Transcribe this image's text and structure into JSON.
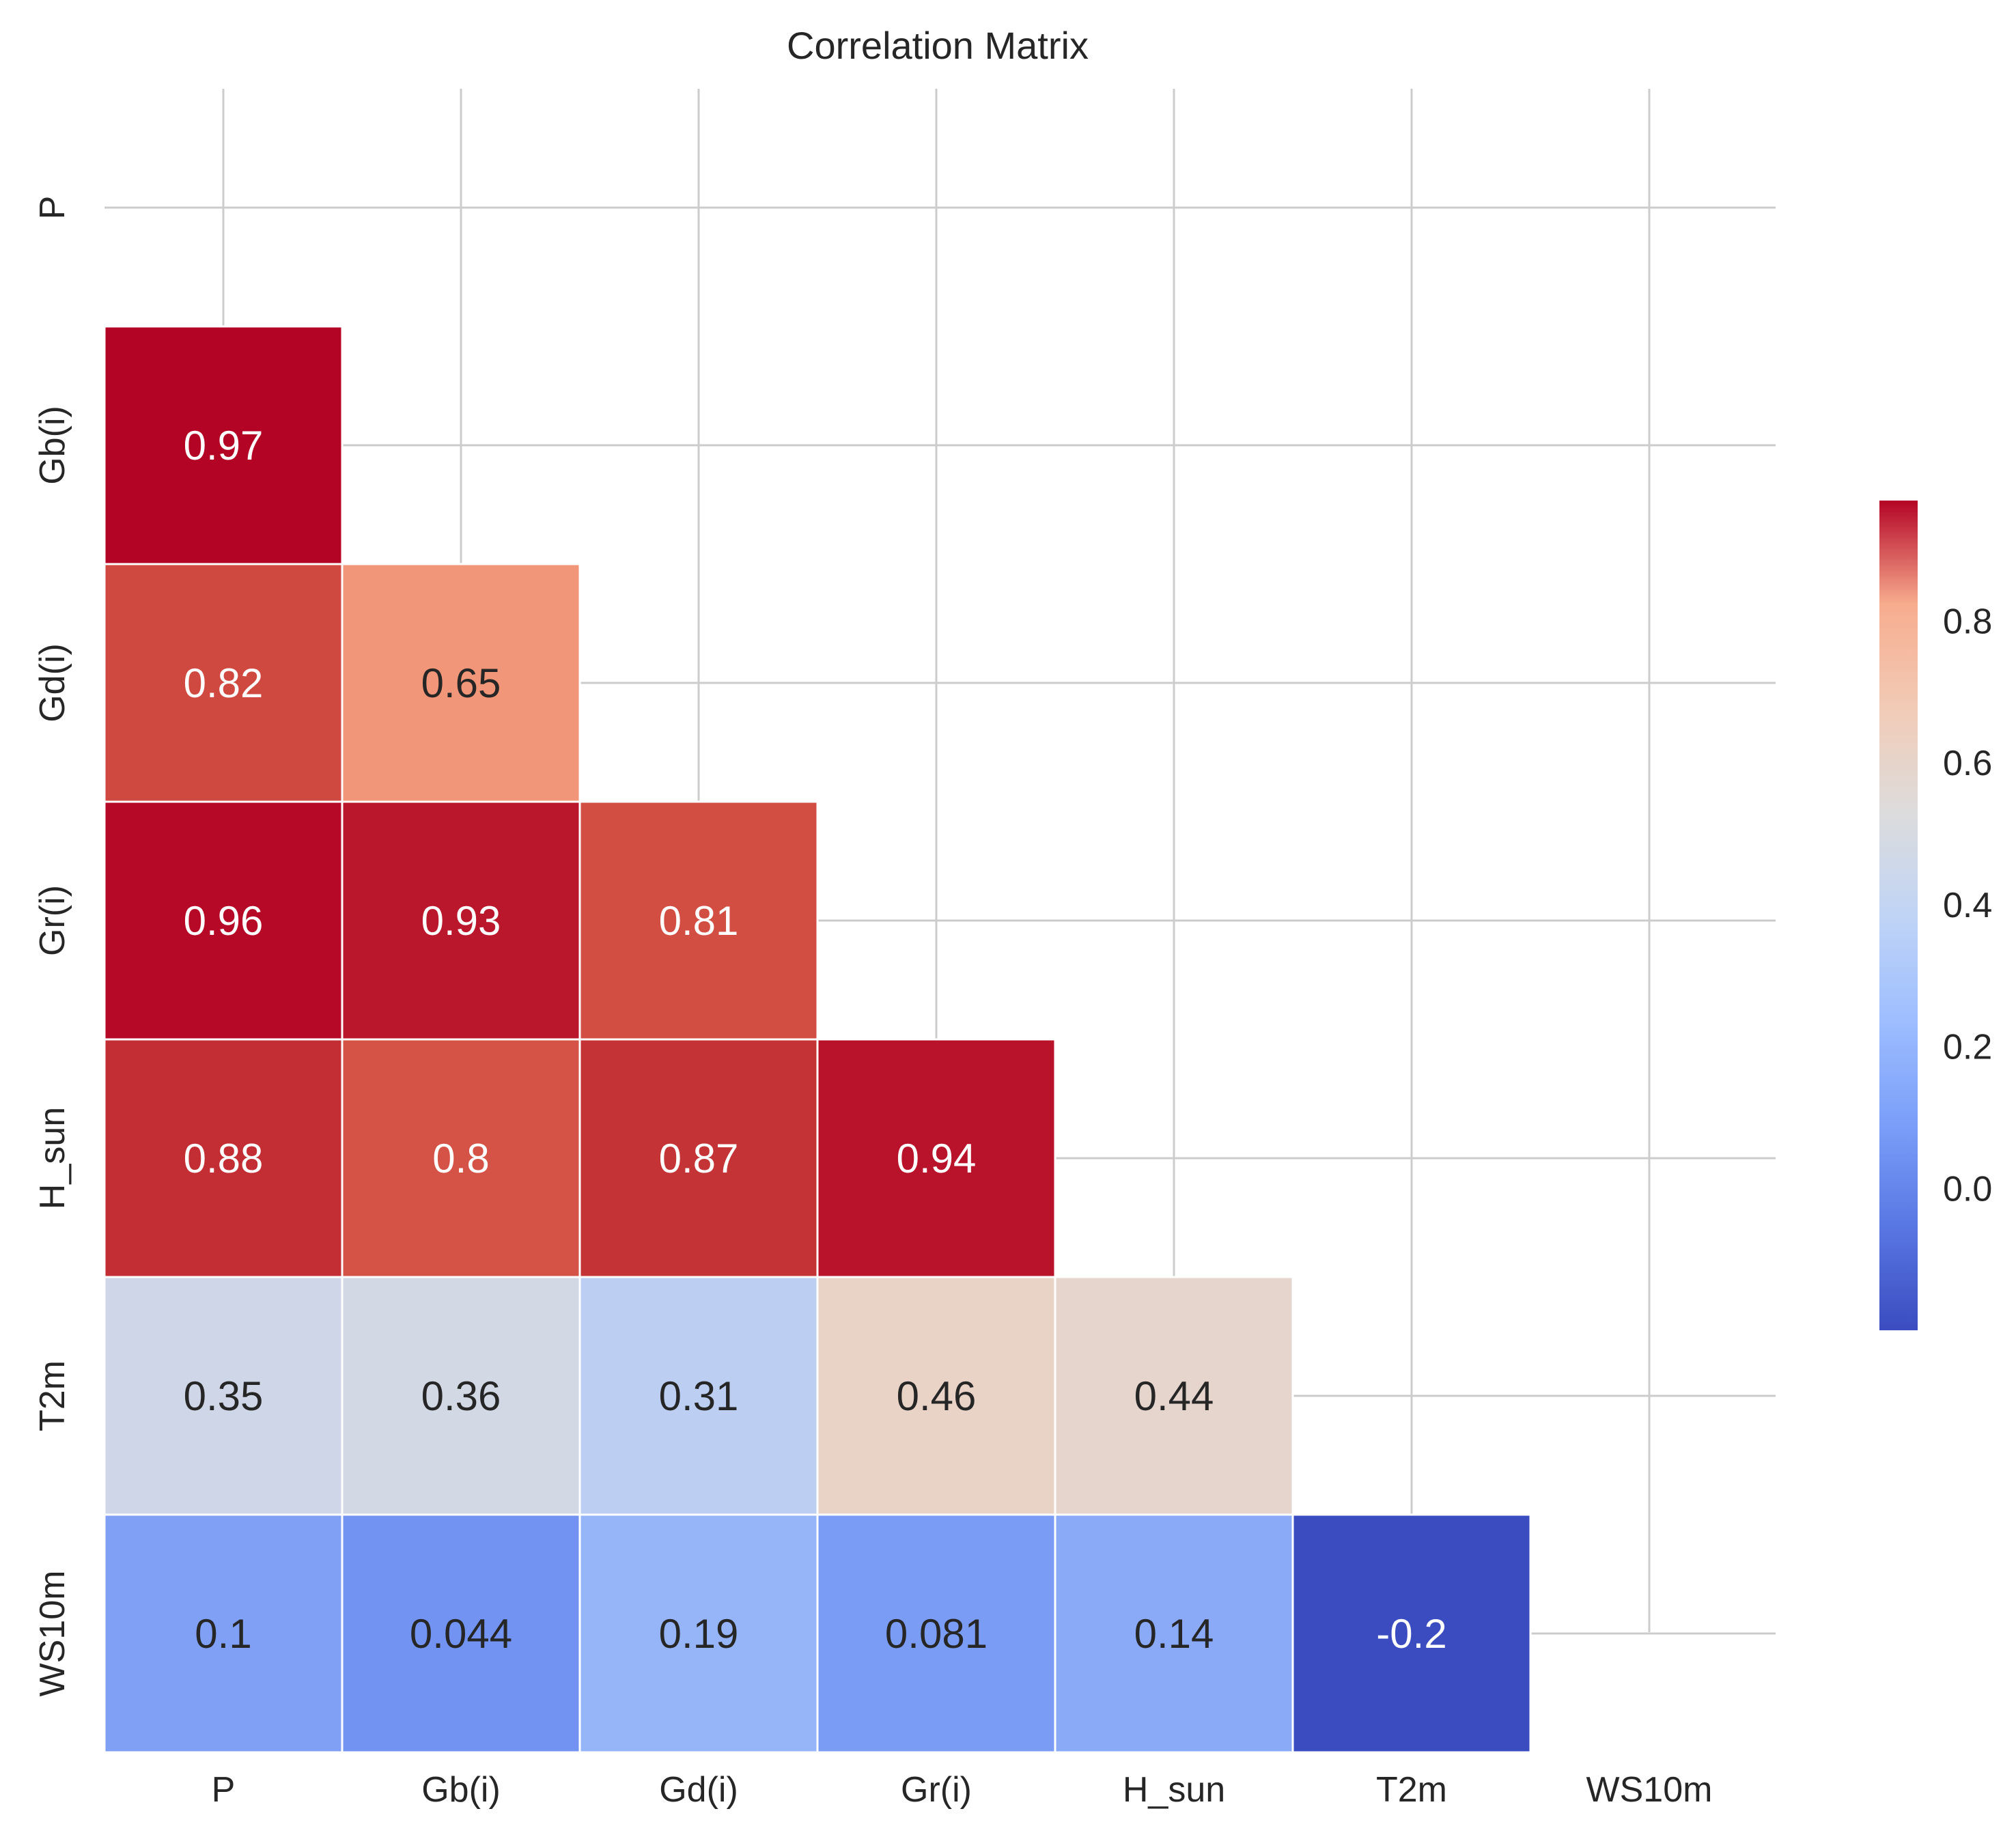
{
  "chart_data": {
    "type": "heatmap",
    "title": "Correlation Matrix",
    "variables": [
      "P",
      "Gb(i)",
      "Gd(i)",
      "Gr(i)",
      "H_sun",
      "T2m",
      "WS10m"
    ],
    "mask": "upper-triangle-including-diagonal",
    "cells": [
      {
        "row": "Gb(i)",
        "col": "P",
        "value": 0.97,
        "label": "0.97"
      },
      {
        "row": "Gd(i)",
        "col": "P",
        "value": 0.82,
        "label": "0.82"
      },
      {
        "row": "Gd(i)",
        "col": "Gb(i)",
        "value": 0.65,
        "label": "0.65"
      },
      {
        "row": "Gr(i)",
        "col": "P",
        "value": 0.96,
        "label": "0.96"
      },
      {
        "row": "Gr(i)",
        "col": "Gb(i)",
        "value": 0.93,
        "label": "0.93"
      },
      {
        "row": "Gr(i)",
        "col": "Gd(i)",
        "value": 0.81,
        "label": "0.81"
      },
      {
        "row": "H_sun",
        "col": "P",
        "value": 0.88,
        "label": "0.88"
      },
      {
        "row": "H_sun",
        "col": "Gb(i)",
        "value": 0.8,
        "label": "0.8"
      },
      {
        "row": "H_sun",
        "col": "Gd(i)",
        "value": 0.87,
        "label": "0.87"
      },
      {
        "row": "H_sun",
        "col": "Gr(i)",
        "value": 0.94,
        "label": "0.94"
      },
      {
        "row": "T2m",
        "col": "P",
        "value": 0.35,
        "label": "0.35"
      },
      {
        "row": "T2m",
        "col": "Gb(i)",
        "value": 0.36,
        "label": "0.36"
      },
      {
        "row": "T2m",
        "col": "Gd(i)",
        "value": 0.31,
        "label": "0.31"
      },
      {
        "row": "T2m",
        "col": "Gr(i)",
        "value": 0.46,
        "label": "0.46"
      },
      {
        "row": "T2m",
        "col": "H_sun",
        "value": 0.44,
        "label": "0.44"
      },
      {
        "row": "WS10m",
        "col": "P",
        "value": 0.1,
        "label": "0.1"
      },
      {
        "row": "WS10m",
        "col": "Gb(i)",
        "value": 0.044,
        "label": "0.044"
      },
      {
        "row": "WS10m",
        "col": "Gd(i)",
        "value": 0.19,
        "label": "0.19"
      },
      {
        "row": "WS10m",
        "col": "Gr(i)",
        "value": 0.081,
        "label": "0.081"
      },
      {
        "row": "WS10m",
        "col": "H_sun",
        "value": 0.14,
        "label": "0.14"
      },
      {
        "row": "WS10m",
        "col": "T2m",
        "value": -0.2,
        "label": "-0.2"
      }
    ],
    "colormap": "coolwarm",
    "color_range": [
      -0.2,
      0.97
    ],
    "colorbar": {
      "ticks": [
        0.0,
        0.2,
        0.4,
        0.6,
        0.8
      ],
      "tick_labels": [
        "0.0",
        "0.2",
        "0.4",
        "0.6",
        "0.8"
      ],
      "placement": "right"
    },
    "grid": true
  }
}
